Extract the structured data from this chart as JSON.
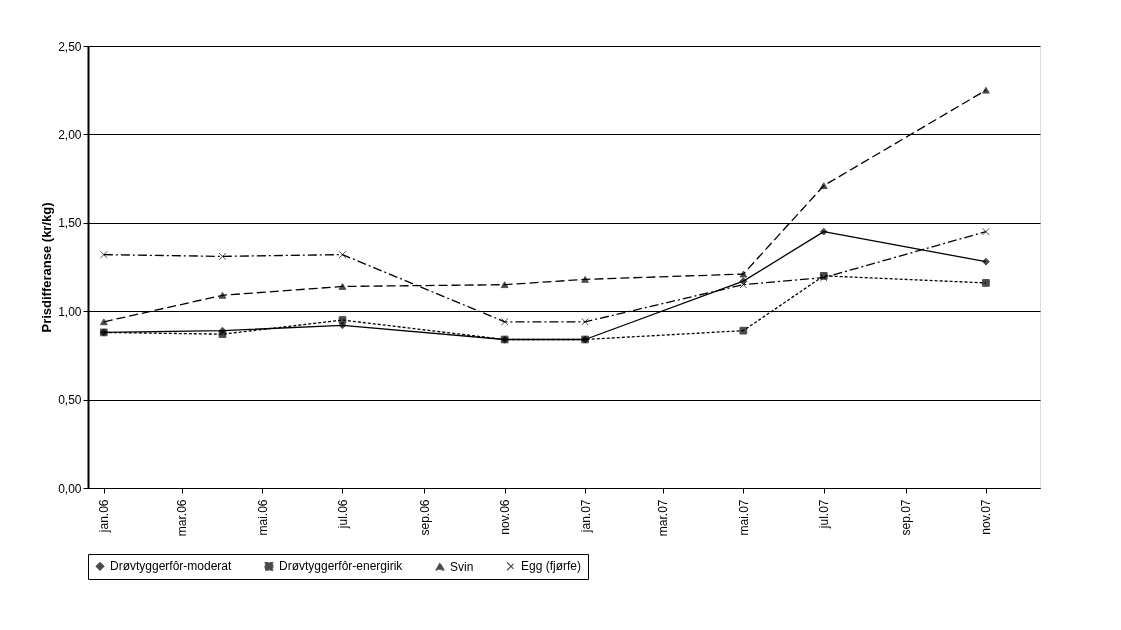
{
  "chart_data": {
    "type": "line",
    "ylabel": "Prisdifferanse (kr/kg)",
    "x": [
      "2006-01",
      "2006-04",
      "2006-07",
      "2006-11",
      "2007-01",
      "2007-05",
      "2007-07",
      "2007-11"
    ],
    "series": [
      {
        "name": "Drøvtyggerfôr-moderat",
        "color": "#000000",
        "marker": "diamond",
        "line_style": "solid",
        "values": [
          0.88,
          0.89,
          0.92,
          0.84,
          0.84,
          1.17,
          1.45,
          1.28
        ]
      },
      {
        "name": "Drøvtyggerfôr-energirik",
        "color": "#000000",
        "marker": "square",
        "line_style": "dotted",
        "values": [
          0.88,
          0.87,
          0.95,
          0.84,
          0.84,
          0.89,
          1.2,
          1.16
        ]
      },
      {
        "name": "Svin",
        "color": "#000000",
        "marker": "triangle",
        "line_style": "dashed",
        "values": [
          0.94,
          1.09,
          1.14,
          1.15,
          1.18,
          1.21,
          1.71,
          2.25
        ]
      },
      {
        "name": "Egg (fjørfe)",
        "color": "#000000",
        "marker": "cross",
        "line_style": "dashdot",
        "values": [
          1.32,
          1.31,
          1.32,
          0.94,
          0.94,
          1.15,
          1.19,
          1.45
        ]
      }
    ],
    "xlim": [
      "2005-12-20",
      "2007-12-12"
    ],
    "xticks": [
      {
        "value": "2006-01",
        "label": "jan.06"
      },
      {
        "value": "2006-03",
        "label": "mar.06"
      },
      {
        "value": "2006-05",
        "label": "mai.06"
      },
      {
        "value": "2006-07",
        "label": "jul.06"
      },
      {
        "value": "2006-09",
        "label": "sep.06"
      },
      {
        "value": "2006-11",
        "label": "nov.06"
      },
      {
        "value": "2007-01",
        "label": "jan.07"
      },
      {
        "value": "2007-03",
        "label": "mar.07"
      },
      {
        "value": "2007-05",
        "label": "mai.07"
      },
      {
        "value": "2007-07",
        "label": "jul.07"
      },
      {
        "value": "2007-09",
        "label": "sep.07"
      },
      {
        "value": "2007-11",
        "label": "nov.07"
      }
    ],
    "ylim": [
      0,
      2.5
    ],
    "yticks": [
      {
        "value": 0,
        "label": "0,00"
      },
      {
        "value": 0.5,
        "label": "0,50"
      },
      {
        "value": 1.0,
        "label": "1,00"
      },
      {
        "value": 1.5,
        "label": "1,50"
      },
      {
        "value": 2.0,
        "label": "2,00"
      },
      {
        "value": 2.5,
        "label": "2,50"
      }
    ],
    "grid": "y",
    "legend": "bottom"
  }
}
